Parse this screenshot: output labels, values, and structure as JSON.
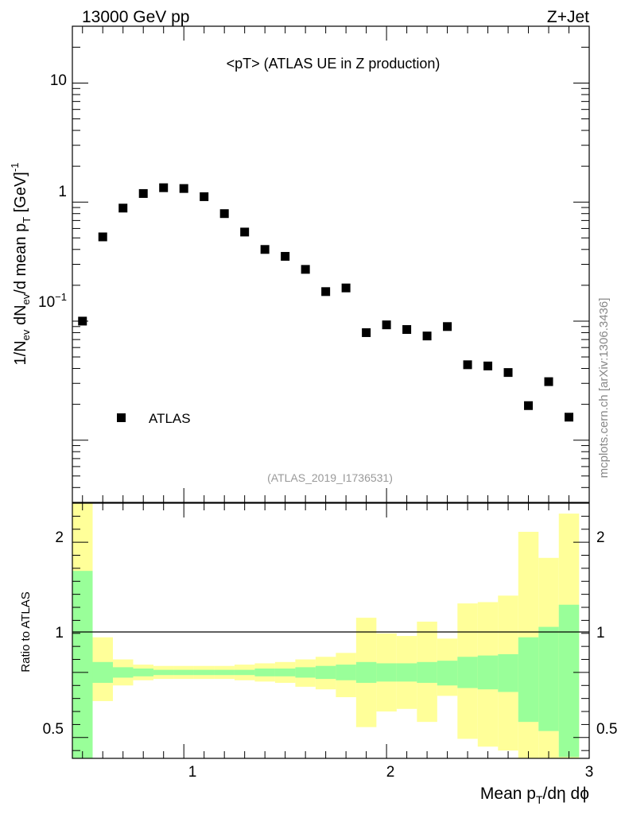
{
  "header": {
    "energy_label": "13000 GeV pp",
    "process_label": "Z+Jet"
  },
  "watermark": "mcplots.cern.ch [arXiv:1306.3436]",
  "chart_data": [
    {
      "type": "scatter",
      "title": "<pT> (ATLAS UE in Z production)",
      "analysis_id": "(ATLAS_2019_I1736531)",
      "ylabel": "1/N_ev dN_ev/d mean p_T [GeV]^-1",
      "yscale": "log",
      "ylim": [
        0.003,
        30
      ],
      "xlim": [
        0.45,
        3.0
      ],
      "y_tick_labels": [
        "10^-1",
        "1",
        "10"
      ],
      "legend": {
        "placement": "bottom-left",
        "entries": [
          "ATLAS"
        ]
      },
      "series": [
        {
          "name": "ATLAS",
          "marker": "square",
          "color": "#000000",
          "x": [
            0.5,
            0.6,
            0.7,
            0.8,
            0.9,
            1.0,
            1.1,
            1.2,
            1.3,
            1.4,
            1.5,
            1.6,
            1.7,
            1.8,
            1.9,
            2.0,
            2.1,
            2.2,
            2.3,
            2.4,
            2.5,
            2.6,
            2.7,
            2.8,
            2.9
          ],
          "y": [
            0.1,
            0.51,
            0.89,
            1.18,
            1.32,
            1.3,
            1.11,
            0.8,
            0.56,
            0.4,
            0.35,
            0.272,
            0.177,
            0.19,
            0.08,
            0.093,
            0.085,
            0.075,
            0.09,
            0.043,
            0.042,
            0.037,
            0.0195,
            0.031,
            0.0156
          ]
        }
      ]
    },
    {
      "type": "area",
      "ylabel": "Ratio to ATLAS",
      "xlabel": "Mean p_T/dη dϕ",
      "ylim": [
        0.34,
        2.3
      ],
      "xlim": [
        0.45,
        3.0
      ],
      "y_tick_labels": [
        "0.5",
        "1",
        "2"
      ],
      "x_tick_labels": [
        "1",
        "2",
        "3"
      ],
      "colors": {
        "stat_band": "#99ff99",
        "total_band": "#ffff99"
      },
      "bin_edges": [
        0.45,
        0.55,
        0.65,
        0.75,
        0.85,
        0.95,
        1.05,
        1.15,
        1.25,
        1.35,
        1.45,
        1.55,
        1.65,
        1.75,
        1.85,
        1.95,
        2.05,
        2.15,
        2.25,
        2.35,
        2.45,
        2.55,
        2.65,
        2.75,
        2.85,
        2.95
      ],
      "stat_band": {
        "upper": [
          1.78,
          1.08,
          1.04,
          1.03,
          1.02,
          1.02,
          1.02,
          1.02,
          1.02,
          1.03,
          1.03,
          1.04,
          1.05,
          1.06,
          1.08,
          1.07,
          1.07,
          1.08,
          1.09,
          1.12,
          1.13,
          1.14,
          1.27,
          1.35,
          1.52
        ],
        "lower": [
          0.3,
          0.92,
          0.96,
          0.97,
          0.98,
          0.98,
          0.98,
          0.98,
          0.98,
          0.97,
          0.97,
          0.96,
          0.95,
          0.94,
          0.92,
          0.93,
          0.93,
          0.92,
          0.9,
          0.88,
          0.87,
          0.85,
          0.62,
          0.55,
          0.35
        ]
      },
      "total_band": {
        "upper": [
          2.3,
          1.27,
          1.1,
          1.06,
          1.05,
          1.05,
          1.05,
          1.05,
          1.06,
          1.07,
          1.08,
          1.1,
          1.12,
          1.15,
          1.42,
          1.3,
          1.28,
          1.39,
          1.26,
          1.53,
          1.54,
          1.59,
          2.08,
          1.88,
          2.22
        ],
        "lower": [
          0.3,
          0.78,
          0.9,
          0.94,
          0.95,
          0.95,
          0.95,
          0.95,
          0.94,
          0.93,
          0.92,
          0.89,
          0.87,
          0.81,
          0.58,
          0.7,
          0.72,
          0.62,
          0.82,
          0.49,
          0.43,
          0.4,
          0.3,
          0.3,
          0.3
        ]
      }
    }
  ]
}
